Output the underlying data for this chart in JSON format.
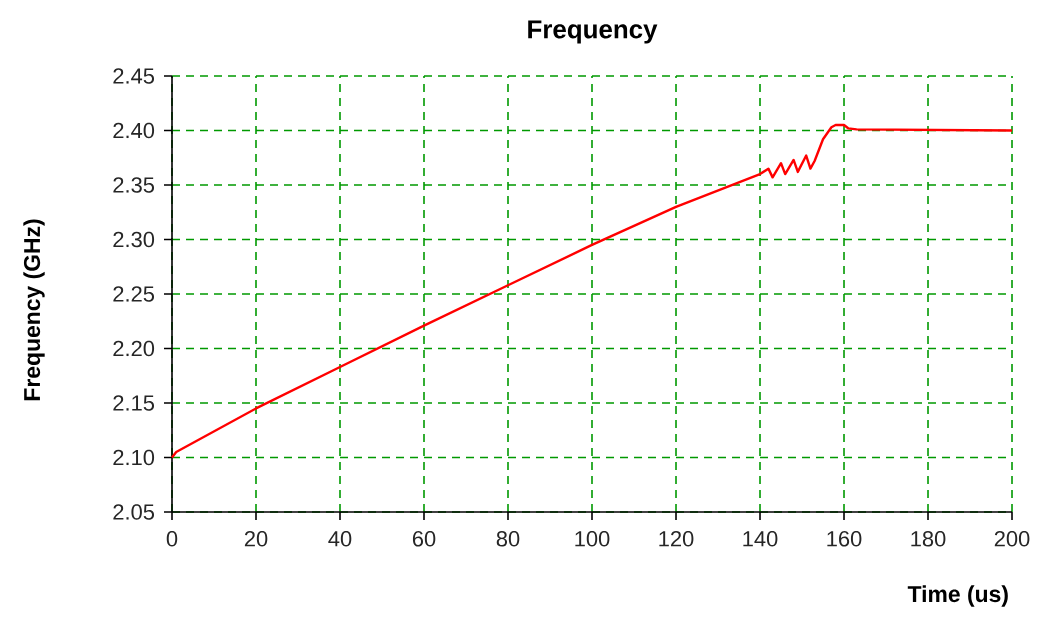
{
  "chart_data": {
    "type": "line",
    "title": "Frequency",
    "xlabel": "Time (us)",
    "ylabel": "Frequency (GHz)",
    "xlim": [
      0,
      200
    ],
    "xticks": [
      0,
      20,
      40,
      60,
      80,
      100,
      120,
      140,
      160,
      180,
      200
    ],
    "ylim": [
      2.05,
      2.45
    ],
    "yticks": [
      {
        "value": 2.05,
        "label": "2.05"
      },
      {
        "value": 2.1,
        "label": "2.10"
      },
      {
        "value": 2.15,
        "label": "2.15"
      },
      {
        "value": 2.2,
        "label": "2.20"
      },
      {
        "value": 2.25,
        "label": "2.25"
      },
      {
        "value": 2.3,
        "label": "2.30"
      },
      {
        "value": 2.35,
        "label": "2.35"
      },
      {
        "value": 2.4,
        "label": "2.40"
      },
      {
        "value": 2.45,
        "label": "2.45"
      }
    ],
    "grid": true,
    "marker": "none",
    "line_style": "solid",
    "series": [
      {
        "color": "#ff0000",
        "x": [
          0,
          1,
          20,
          40,
          60,
          80,
          100,
          120,
          130,
          140,
          142,
          143,
          145,
          146,
          148,
          149,
          151,
          152,
          153,
          155,
          157,
          158,
          160,
          161,
          163,
          200
        ],
        "values": [
          2.1,
          2.105,
          2.145,
          2.183,
          2.221,
          2.258,
          2.295,
          2.33,
          2.345,
          2.36,
          2.365,
          2.357,
          2.37,
          2.36,
          2.373,
          2.362,
          2.377,
          2.365,
          2.372,
          2.392,
          2.403,
          2.405,
          2.405,
          2.402,
          2.401,
          2.4
        ]
      }
    ]
  }
}
